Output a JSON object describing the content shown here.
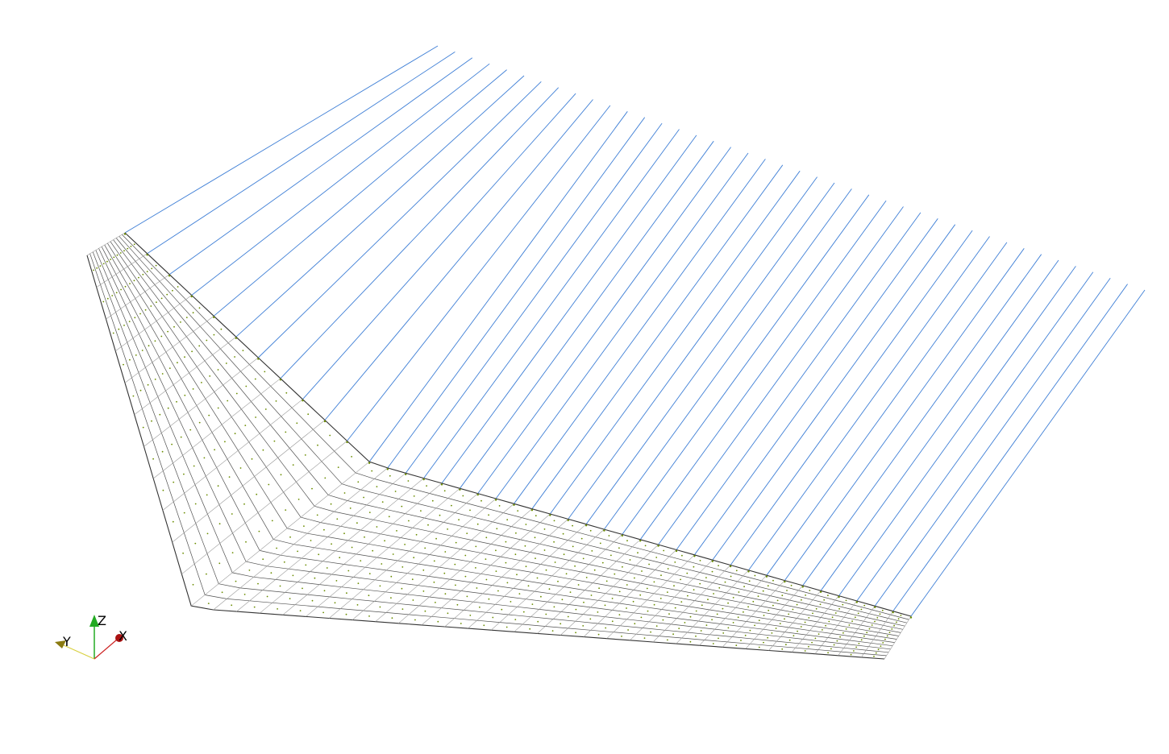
{
  "scene": {
    "wake_line_count": 42,
    "mesh_chordwise_bands": 13,
    "colors": {
      "background": "#ffffff",
      "wake": "#3f7fd6",
      "mesh": "#333333",
      "mesh_light": "#9a9a9a",
      "mesh_points": "#6a8c00"
    }
  },
  "axes_triad": {
    "z_label": "Z",
    "x_label": "X",
    "y_label": "Y",
    "colors": {
      "z": "#22aa22",
      "x": "#cc2222",
      "y": "#b0a020"
    }
  }
}
